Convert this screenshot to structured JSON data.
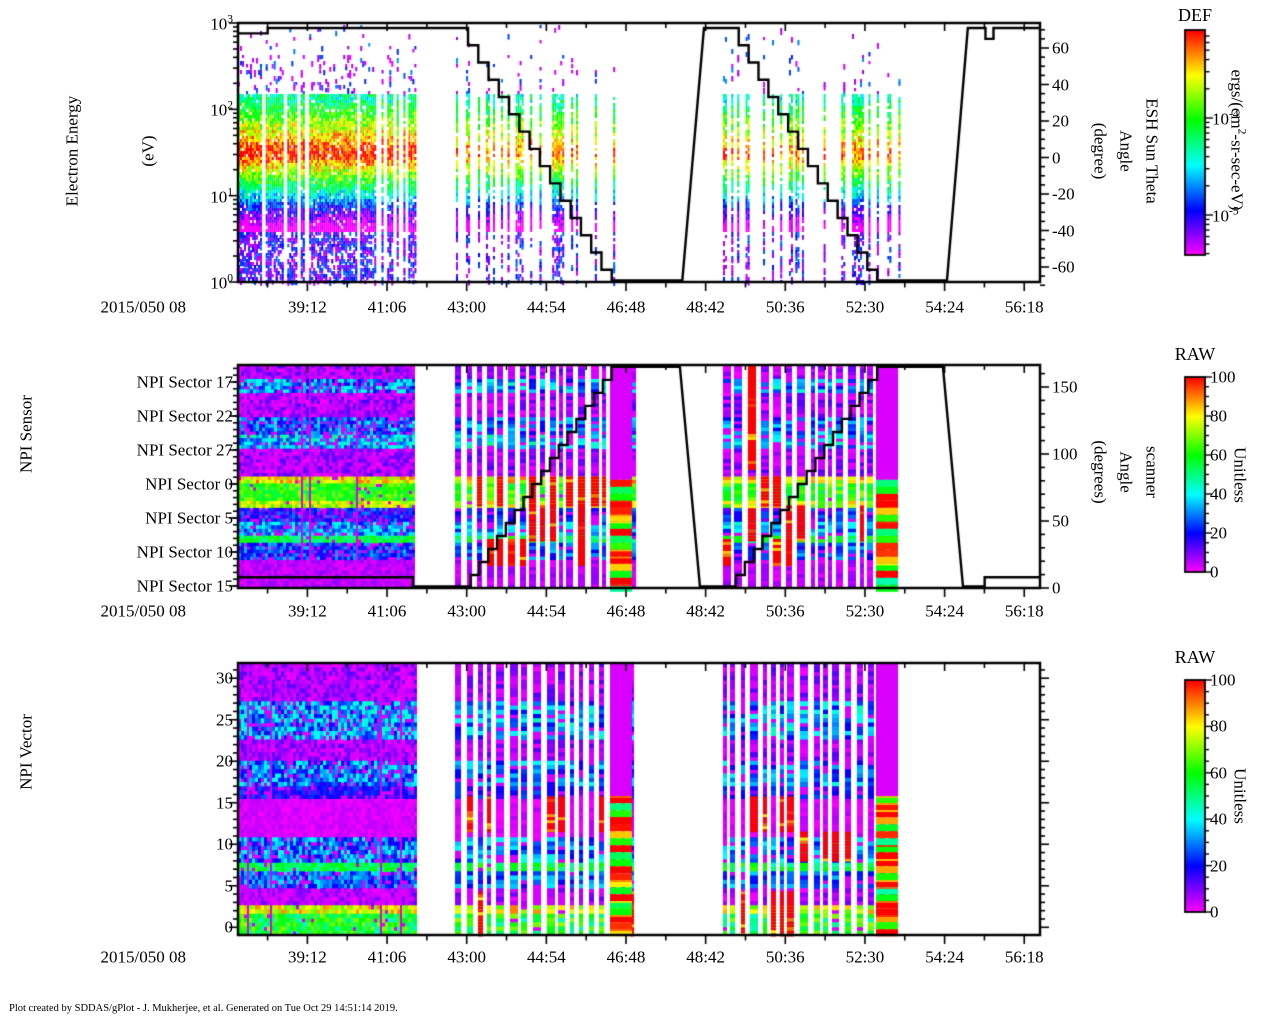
{
  "figure": {
    "footer": "Plot created by SDDAS/gPlot - J. Mukherjee, et al.  Generated on Tue Oct 29 14:51:14 2019."
  },
  "time_axis": {
    "date_label": "2015/050 08",
    "tick_labels": [
      "39:12",
      "41:06",
      "43:00",
      "44:54",
      "46:48",
      "48:42",
      "50:36",
      "52:30",
      "54:24",
      "56:18"
    ]
  },
  "colormap": {
    "type": "rainbow",
    "low_color_hue": 300,
    "high_color_hue": 0,
    "noise_seed": 1337
  },
  "chart_data": {
    "type": "heatmap",
    "panels": [
      {
        "id": "electron-energy-spectrogram",
        "title_lines": [
          "Electron Energy",
          "(eV)"
        ],
        "y_axis": {
          "scale": "log",
          "min": 1,
          "max": 1000,
          "tick_labels": [
            "10^0",
            "10^1",
            "10^2",
            "10^3"
          ]
        },
        "right_axis": {
          "label_lines": [
            "ESH Sun Theta",
            "Angle",
            "(degree)"
          ],
          "min": -74,
          "max": 74,
          "majors": [
            60,
            40,
            20,
            0,
            -20,
            -40,
            -60
          ],
          "minor_step": 5
        },
        "colorbar": {
          "title": "DEF",
          "unit": "ergs/(cm^2-sr-sec-eV)",
          "scale": "log",
          "major_labels": [
            "10^-4",
            "10^-5"
          ],
          "major_exponents": [
            -4,
            -5
          ]
        },
        "line": {
          "name": "esh-sun-theta-angle-line",
          "segments": [
            [
              "flat",
              0.0,
              0.037,
              68
            ],
            [
              "flat",
              0.037,
              0.274,
              71
            ],
            [
              "stair",
              0.274,
              0.466,
              71,
              -71,
              15
            ],
            [
              "flat",
              0.466,
              0.554,
              -71
            ],
            [
              "ramp",
              0.554,
              0.581,
              -71,
              71
            ],
            [
              "flat",
              0.581,
              0.612,
              71
            ],
            [
              "stair",
              0.612,
              0.797,
              71,
              -71,
              15
            ],
            [
              "flat",
              0.797,
              0.884,
              -71
            ],
            [
              "ramp",
              0.884,
              0.91,
              -71,
              71
            ],
            [
              "flat",
              0.91,
              0.932,
              71
            ],
            [
              "flat",
              0.932,
              0.942,
              65
            ],
            [
              "flat",
              0.942,
              1.0,
              71
            ]
          ]
        },
        "groups": [
          {
            "f0": 0.0,
            "f1": 0.2207,
            "style": "dense"
          },
          {
            "f0": 0.2718,
            "f1": 0.487,
            "style": "sparse"
          },
          {
            "f0": 0.6047,
            "f1": 0.8254,
            "style": "sparse"
          }
        ],
        "spectrum": {
          "band_top_log": 2.204,
          "band_bot_log": 0.6,
          "peak_log": 1.5,
          "slope_above": 0.8,
          "slope_below": 1.25,
          "speckle_hi_p": 0.14,
          "speckle_hi_p2": 0.05,
          "speckle_lo_p": 0.55
        }
      },
      {
        "id": "npi-sensor-spectrogram",
        "sector_labels": [
          "NPI Sector 17",
          "NPI Sector 22",
          "NPI Sector 27",
          "NPI Sector 0",
          "NPI Sector 5",
          "NPI Sector 10",
          "NPI Sector 15"
        ],
        "right_axis": {
          "label_lines": [
            "scanner",
            "Angle",
            "(degrees)"
          ],
          "min": 0,
          "max": 166,
          "majors": [
            150,
            100,
            50,
            0
          ],
          "minor_step": 10
        },
        "colorbar": {
          "title": "RAW",
          "unit": "Unitless",
          "scale": "linear",
          "min": 0,
          "max": 100,
          "major_labels": [
            "100",
            "80",
            "60",
            "40",
            "20",
            "0"
          ],
          "major_step": 20,
          "minor_step": 5
        },
        "line": {
          "name": "scanner-angle-line",
          "segments": [
            [
              "flat",
              0.0,
              0.218,
              8
            ],
            [
              "flat",
              0.218,
              0.279,
              0
            ],
            [
              "stair",
              0.279,
              0.466,
              0,
              165,
              17
            ],
            [
              "flat",
              0.466,
              0.551,
              165
            ],
            [
              "ramp",
              0.551,
              0.576,
              165,
              0
            ],
            [
              "flat",
              0.576,
              0.61,
              0
            ],
            [
              "stair",
              0.61,
              0.797,
              0,
              165,
              17
            ],
            [
              "flat",
              0.797,
              0.879,
              165
            ],
            [
              "ramp",
              0.879,
              0.904,
              165,
              0
            ],
            [
              "flat",
              0.904,
              0.931,
              0
            ],
            [
              "flat",
              0.931,
              1.0,
              8
            ]
          ]
        },
        "groups": [
          {
            "f0": 0.0,
            "f1": 0.2195,
            "style": "block"
          },
          {
            "f0": 0.2706,
            "f1": 0.4913,
            "style": "striped"
          },
          {
            "f0": 0.6047,
            "f1": 0.8254,
            "style": "striped"
          }
        ],
        "end_blocks": [
          {
            "f0": 0.4639,
            "f1": 0.4913
          },
          {
            "f0": 0.7955,
            "f1": 0.823
          }
        ],
        "end_block_split": 0.515,
        "bands": [
          {
            "y0": 0.0,
            "y1": 0.055,
            "t": 0.07,
            "n": 0.07,
            "mode": "speckle"
          },
          {
            "y0": 0.055,
            "y1": 0.125,
            "t": 0.32,
            "n": 0.14,
            "mode": "speckle"
          },
          {
            "y0": 0.125,
            "y1": 0.233,
            "t": 0.07,
            "n": 0.08,
            "mode": "speckle"
          },
          {
            "y0": 0.233,
            "y1": 0.3,
            "t": 0.28,
            "n": 0.12,
            "mode": "speckle"
          },
          {
            "y0": 0.3,
            "y1": 0.372,
            "t": 0.36,
            "n": 0.13,
            "mode": "speckle"
          },
          {
            "y0": 0.372,
            "y1": 0.493,
            "t": 0.07,
            "n": 0.07,
            "mode": "speckle"
          },
          {
            "y0": 0.493,
            "y1": 0.525,
            "t": 0.8,
            "n": 0.13,
            "mode": "dense"
          },
          {
            "y0": 0.525,
            "y1": 0.597,
            "t": 0.62,
            "n": 0.1,
            "mode": "dense"
          },
          {
            "y0": 0.597,
            "y1": 0.628,
            "t": 0.75,
            "n": 0.12,
            "mode": "dense"
          },
          {
            "y0": 0.628,
            "y1": 0.695,
            "t": 0.2,
            "n": 0.11,
            "mode": "speckle"
          },
          {
            "y0": 0.695,
            "y1": 0.762,
            "t": 0.33,
            "n": 0.12,
            "mode": "speckle"
          },
          {
            "y0": 0.762,
            "y1": 0.793,
            "t": 0.55,
            "n": 0.09,
            "mode": "dense"
          },
          {
            "y0": 0.793,
            "y1": 0.865,
            "t": 0.25,
            "n": 0.11,
            "mode": "speckle"
          },
          {
            "y0": 0.865,
            "y1": 1.0,
            "t": 0.05,
            "n": 0.04,
            "mode": "solid"
          }
        ],
        "red_zones": [
          {
            "y0": 0.0,
            "y1": 0.46,
            "p": 0.07
          },
          {
            "y0": 0.5,
            "y1": 0.63,
            "p": 0.22
          },
          {
            "y0": 0.63,
            "y1": 0.78,
            "p": 0.2
          },
          {
            "y0": 0.78,
            "y1": 0.9,
            "p": 0.16
          }
        ]
      },
      {
        "id": "npi-vector-spectrogram",
        "y_axis": {
          "scale": "linear",
          "min": 0,
          "max": 31.8,
          "majors": [
            0,
            5,
            10,
            15,
            20,
            25,
            30
          ],
          "minor_step": 1,
          "tick_labels": [
            "0",
            "5",
            "10",
            "15",
            "20",
            "25",
            "30"
          ]
        },
        "title_lines": [
          "NPI Vector"
        ],
        "colorbar": {
          "title": "RAW",
          "unit": "Unitless",
          "scale": "linear",
          "min": 0,
          "max": 100,
          "major_labels": [
            "100",
            "80",
            "60",
            "40",
            "20",
            "0"
          ],
          "major_step": 20,
          "minor_step": 5
        },
        "groups": [
          {
            "f0": 0.0,
            "f1": 0.2195,
            "style": "block"
          },
          {
            "f0": 0.2706,
            "f1": 0.4913,
            "style": "striped"
          },
          {
            "f0": 0.6047,
            "f1": 0.8254,
            "style": "striped"
          }
        ],
        "end_blocks": [
          {
            "f0": 0.4639,
            "f1": 0.4913
          },
          {
            "f0": 0.7955,
            "f1": 0.823
          }
        ],
        "end_block_split": 0.49,
        "bands": [
          {
            "y0": 0.0,
            "y1": 0.135,
            "t": 0.07,
            "n": 0.07,
            "mode": "speckle"
          },
          {
            "y0": 0.135,
            "y1": 0.27,
            "t": 0.32,
            "n": 0.14,
            "mode": "speckle"
          },
          {
            "y0": 0.27,
            "y1": 0.355,
            "t": 0.07,
            "n": 0.07,
            "mode": "speckle"
          },
          {
            "y0": 0.355,
            "y1": 0.45,
            "t": 0.3,
            "n": 0.13,
            "mode": "speckle"
          },
          {
            "y0": 0.45,
            "y1": 0.49,
            "t": 0.18,
            "n": 0.09,
            "mode": "speckle"
          },
          {
            "y0": 0.49,
            "y1": 0.63,
            "t": 0.03,
            "n": 0.03,
            "mode": "solid"
          },
          {
            "y0": 0.63,
            "y1": 0.72,
            "t": 0.3,
            "n": 0.13,
            "mode": "speckle"
          },
          {
            "y0": 0.72,
            "y1": 0.755,
            "t": 0.55,
            "n": 0.09,
            "mode": "dense"
          },
          {
            "y0": 0.755,
            "y1": 0.815,
            "t": 0.28,
            "n": 0.11,
            "mode": "speckle"
          },
          {
            "y0": 0.815,
            "y1": 0.88,
            "t": 0.06,
            "n": 0.06,
            "mode": "speckle"
          },
          {
            "y0": 0.88,
            "y1": 0.915,
            "t": 0.78,
            "n": 0.12,
            "mode": "dense"
          },
          {
            "y0": 0.915,
            "y1": 1.0,
            "t": 0.58,
            "n": 0.14,
            "mode": "dense"
          }
        ],
        "red_zones": [
          {
            "y0": 0.3,
            "y1": 0.49,
            "p": 0.06
          },
          {
            "y0": 0.49,
            "y1": 0.62,
            "p": 0.2
          },
          {
            "y0": 0.62,
            "y1": 0.73,
            "p": 0.18
          },
          {
            "y0": 0.84,
            "y1": 1.0,
            "p": 0.22
          }
        ]
      }
    ]
  }
}
